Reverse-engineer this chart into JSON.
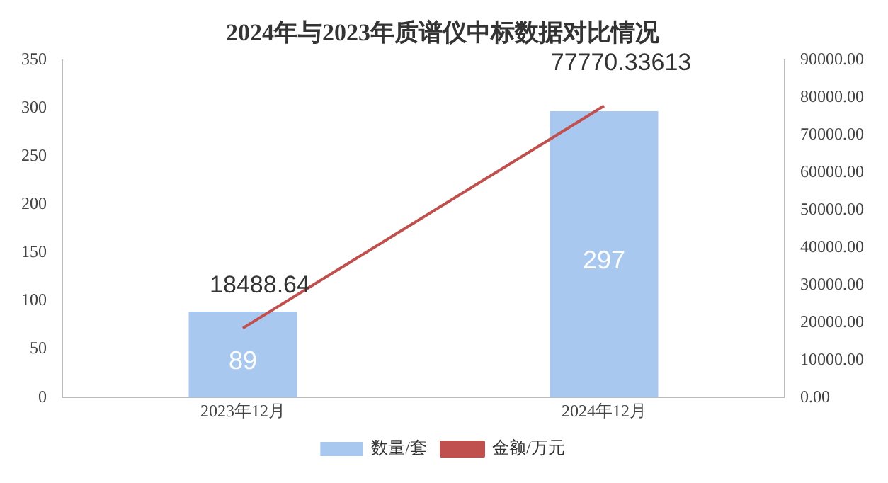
{
  "chart_data": {
    "type": "bar",
    "title": "2024年与2023年质谱仪中标数据对比情况",
    "categories": [
      "2023年12月",
      "2024年12月"
    ],
    "series": [
      {
        "name": "数量/套",
        "color": "#a9c8f0",
        "values": [
          89,
          297
        ]
      },
      {
        "name": "金额/万元",
        "type": "line",
        "axis": "y2",
        "color": "#c0504d",
        "values": [
          18488.64,
          77770.33613
        ]
      }
    ],
    "ylim": [
      0,
      350
    ],
    "yticks": [
      0,
      50,
      100,
      150,
      200,
      250,
      300,
      350
    ],
    "y2lim": [
      0,
      90000
    ],
    "y2ticks": [
      {
        "value": 0,
        "label": "0.00"
      },
      {
        "value": 10000,
        "label": "10000.00"
      },
      {
        "value": 20000,
        "label": "20000.00"
      },
      {
        "value": 30000,
        "label": "30000.00"
      },
      {
        "value": 40000,
        "label": "40000.00"
      },
      {
        "value": 50000,
        "label": "50000.00"
      },
      {
        "value": 60000,
        "label": "60000.00"
      },
      {
        "value": 70000,
        "label": "70000.00"
      },
      {
        "value": 80000,
        "label": "80000.00"
      },
      {
        "value": 90000,
        "label": "90000.00"
      }
    ],
    "data_labels": true,
    "legend": "bottom",
    "grid": false,
    "marker": "none",
    "line_style": "solid"
  }
}
